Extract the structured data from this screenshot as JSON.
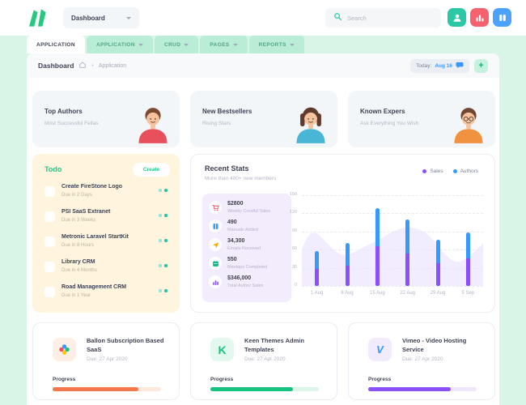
{
  "header": {
    "workspace_label": "Dashboard",
    "search_placeholder": "Search",
    "quick_actions": [
      {
        "icon": "user-icon",
        "color": "#2bc8a5"
      },
      {
        "icon": "bar-chart-icon",
        "color": "#f5626f"
      },
      {
        "icon": "columns-icon",
        "color": "#4da2ff"
      }
    ],
    "logo_color": "#24c87e"
  },
  "tabs": [
    {
      "label": "APPLICATION",
      "active": true
    },
    {
      "label": "APPLICATION",
      "active": false
    },
    {
      "label": "CRUD",
      "active": false
    },
    {
      "label": "PAGES",
      "active": false
    },
    {
      "label": "REPORTS",
      "active": false
    }
  ],
  "subheader": {
    "title": "Dashboard",
    "separator": "•",
    "breadcrumb_item": "Application",
    "today_label": "Today:",
    "today_value": "Aug 16",
    "add_button_glyph": "+"
  },
  "promo_cards": [
    {
      "title": "Top Authors",
      "subtitle": "Most Successful Fellas",
      "avatar": {
        "skin": "#f6c39e",
        "hair": "#7a4a32",
        "shirt": "#e8505b"
      }
    },
    {
      "title": "New Bestsellers",
      "subtitle": "Rising Stars",
      "avatar": {
        "skin": "#f6c39e",
        "hair": "#5f3b2b",
        "shirt": "#49b6d6"
      }
    },
    {
      "title": "Known Expers",
      "subtitle": "Ask Everything You Wish",
      "avatar": {
        "skin": "#f6c39e",
        "hair": "#6f4631",
        "shirt": "#f0923f"
      }
    }
  ],
  "todo": {
    "title": "Todo",
    "create_label": "Create",
    "items": [
      {
        "title": "Create FireStone Logo",
        "due": "Due in 2 Days"
      },
      {
        "title": "PSI SaaS Extranet",
        "due": "Due in 3 Weeks"
      },
      {
        "title": "Metronic Laravel StartKit",
        "due": "Due in 8 Hours"
      },
      {
        "title": "Library CRM",
        "due": "Due in 4 Months"
      },
      {
        "title": "Road Management CRM",
        "due": "Due in 1 Year"
      }
    ]
  },
  "recent_stats": {
    "title": "Recent Stats",
    "subtitle": "More than 400+ new members",
    "legend": [
      {
        "label": "Sales",
        "color": "#8950fc"
      },
      {
        "label": "Authors",
        "color": "#3699ff"
      }
    ],
    "stats": [
      {
        "value": "$2800",
        "label": "Weekly CorsAd Sales",
        "icon": "cart-icon",
        "color": "#f64e60"
      },
      {
        "value": "490",
        "label": "Manuals Added",
        "icon": "book-icon",
        "color": "#3699ff"
      },
      {
        "value": "34,300",
        "label": "Emails Received",
        "icon": "send-icon",
        "color": "#ffa800"
      },
      {
        "value": "550",
        "label": "Meetups Completed",
        "icon": "calendar-icon",
        "color": "#0bb783"
      },
      {
        "value": "$346,000",
        "label": "Total Author Sales",
        "icon": "chart-bars-icon",
        "color": "#8950fc"
      }
    ],
    "chart_data": {
      "type": "bar",
      "stacked": true,
      "categories": [
        "1 Aug",
        "8 Aug",
        "15 Aug",
        "22 Aug",
        "29 Aug",
        "5 Sep"
      ],
      "series": [
        {
          "name": "Sales",
          "color": "#8950fc",
          "values": [
            28,
            33,
            65,
            54,
            38,
            45
          ]
        },
        {
          "name": "Authors",
          "color": "#3699ff",
          "values": [
            30,
            38,
            64,
            56,
            38,
            44
          ]
        }
      ],
      "area": {
        "name": "trend",
        "color": "#8950fc",
        "x": [
          0,
          0.07,
          0.22,
          0.38,
          0.55,
          0.68,
          0.85,
          1
        ],
        "values": [
          62,
          88,
          52,
          70,
          95,
          88,
          40,
          70
        ]
      },
      "ylim": [
        0,
        150
      ],
      "yticks": [
        0,
        30,
        60,
        90,
        120,
        150
      ],
      "grid": "dashed-horizontal",
      "legend_position": "top-right"
    }
  },
  "projects": [
    {
      "title": "Ballon Subscription Based SaaS",
      "due": "Due: 27 Apr 2020",
      "progress_label": "Progress",
      "progress_pct": 79,
      "bar_color": "#f2784b",
      "track_color": "#fde8dc",
      "icon": "pinwheel-icon",
      "icon_bg": "#fdeee6"
    },
    {
      "title": "Keen Themes Admin Templates",
      "due": "Due: 27 Apr 2020",
      "progress_label": "Progress",
      "progress_pct": 76,
      "bar_color": "#17c27f",
      "track_color": "#dcf6ea",
      "icon": "keenthemes-k-icon",
      "icon_bg": "#e3f8ee",
      "icon_letter": "K"
    },
    {
      "title": "Vimeo - Video Hosting Service",
      "due": "Due: 27 Apr 2020",
      "progress_label": "Progress",
      "progress_pct": 76,
      "bar_color": "#8950fc",
      "track_color": "#efe6fd",
      "icon": "vimeo-v-icon",
      "icon_bg": "#f2ebfd",
      "icon_letter": "V"
    }
  ]
}
